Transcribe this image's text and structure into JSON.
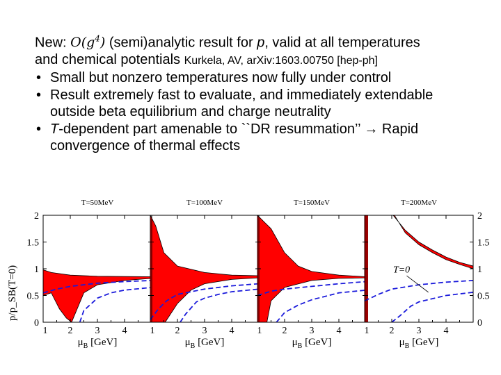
{
  "text": {
    "intro_prefix": "New: ",
    "intro_math": "O(g",
    "intro_math_sup": "4",
    "intro_math_close": ")",
    "intro_mid": " (semi)analytic result for ",
    "intro_p": "p",
    "intro_end": ", valid at all temperatures",
    "line2_main": "and chemical potentials ",
    "line2_ref": "Kurkela, AV, arXiv:1603.00750 [hep-ph]",
    "bullet1": "Small but nonzero temperatures now fully under control",
    "bullet2_l1": "Result extremely fast to evaluate, and immediately extendable",
    "bullet2_l2": "outside beta equilibrium and charge neutrality",
    "bullet3_T": "T",
    "bullet3_l1_rest": "-dependent part amenable to ``DR resummation’’ → Rapid",
    "bullet3_l2": "convergence of thermal effects"
  },
  "chart_data": {
    "type": "line",
    "ylabel": "p/p_SB(T=0)",
    "ylim": [
      0,
      2
    ],
    "xlim": [
      1,
      5
    ],
    "xticks": [
      1,
      2,
      3,
      4
    ],
    "yticks_left": [
      "0",
      "0.5",
      "1",
      "1.5",
      "2"
    ],
    "yticks_right": [
      "0",
      "0.5",
      "1",
      "1.5",
      "2"
    ],
    "xtick_labels": [
      "1",
      "2",
      "3",
      "4"
    ],
    "annotation": "T=0",
    "panels": [
      {
        "title": "T=50MeV",
        "xlabel": "μ_B [GeV]",
        "xlabel_main": "μ",
        "xlabel_sub": "B",
        "xlabel_unit": " [GeV]",
        "band_upper": [
          [
            1.0,
            0.98
          ],
          [
            1.3,
            0.93
          ],
          [
            2.0,
            0.88
          ],
          [
            3.0,
            0.86
          ],
          [
            5.0,
            0.85
          ]
        ],
        "band_lower": [
          [
            1.0,
            0.5
          ],
          [
            1.3,
            0.55
          ],
          [
            1.6,
            0.25
          ],
          [
            1.85,
            0.08
          ],
          [
            2.05,
            0.0
          ],
          [
            2.5,
            0.55
          ],
          [
            3.0,
            0.7
          ],
          [
            4.0,
            0.78
          ],
          [
            5.0,
            0.82
          ]
        ],
        "dashed_upper": [
          [
            1.0,
            0.55
          ],
          [
            1.5,
            0.62
          ],
          [
            2.0,
            0.67
          ],
          [
            3.0,
            0.73
          ],
          [
            4.0,
            0.76
          ],
          [
            5.0,
            0.78
          ]
        ],
        "dashed_lower": [
          [
            2.35,
            0.0
          ],
          [
            2.5,
            0.22
          ],
          [
            3.0,
            0.45
          ],
          [
            3.5,
            0.55
          ],
          [
            4.0,
            0.6
          ],
          [
            5.0,
            0.65
          ]
        ]
      },
      {
        "title": "T=100MeV",
        "xlabel": "μ_B [GeV]",
        "xlabel_main": "μ",
        "xlabel_sub": "B",
        "xlabel_unit": " [GeV]",
        "band_upper": [
          [
            1.0,
            2.0
          ],
          [
            1.2,
            1.8
          ],
          [
            1.5,
            1.3
          ],
          [
            2.0,
            1.05
          ],
          [
            3.0,
            0.93
          ],
          [
            4.0,
            0.88
          ],
          [
            5.0,
            0.87
          ]
        ],
        "band_lower": [
          [
            1.0,
            0.0
          ],
          [
            1.55,
            0.0
          ],
          [
            2.0,
            0.35
          ],
          [
            2.5,
            0.6
          ],
          [
            3.0,
            0.72
          ],
          [
            4.0,
            0.8
          ],
          [
            5.0,
            0.83
          ]
        ],
        "dashed_upper": [
          [
            1.0,
            0.05
          ],
          [
            1.3,
            0.25
          ],
          [
            1.6,
            0.4
          ],
          [
            2.0,
            0.52
          ],
          [
            3.0,
            0.62
          ],
          [
            4.0,
            0.68
          ],
          [
            5.0,
            0.72
          ]
        ],
        "dashed_lower": [
          [
            2.1,
            0.0
          ],
          [
            2.3,
            0.15
          ],
          [
            2.7,
            0.38
          ],
          [
            3.0,
            0.45
          ],
          [
            3.5,
            0.52
          ],
          [
            4.0,
            0.57
          ],
          [
            5.0,
            0.62
          ]
        ]
      },
      {
        "title": "T=150MeV",
        "xlabel": "μ_B [GeV]",
        "xlabel_main": "μ",
        "xlabel_sub": "B",
        "xlabel_unit": " [GeV]",
        "band_upper": [
          [
            1.0,
            2.0
          ],
          [
            1.5,
            1.75
          ],
          [
            2.0,
            1.3
          ],
          [
            2.5,
            1.05
          ],
          [
            3.0,
            0.95
          ],
          [
            4.0,
            0.88
          ],
          [
            5.0,
            0.85
          ]
        ],
        "band_lower": [
          [
            1.0,
            0.0
          ],
          [
            1.35,
            0.0
          ],
          [
            1.5,
            0.4
          ],
          [
            2.0,
            0.65
          ],
          [
            3.0,
            0.78
          ],
          [
            4.0,
            0.82
          ],
          [
            5.0,
            0.83
          ]
        ],
        "dashed_upper": [
          [
            1.0,
            0.5
          ],
          [
            1.5,
            0.58
          ],
          [
            2.0,
            0.62
          ],
          [
            3.0,
            0.67
          ],
          [
            4.0,
            0.72
          ],
          [
            5.0,
            0.76
          ]
        ],
        "dashed_lower": [
          [
            1.7,
            0.0
          ],
          [
            2.0,
            0.18
          ],
          [
            2.5,
            0.32
          ],
          [
            3.0,
            0.42
          ],
          [
            4.0,
            0.55
          ],
          [
            5.0,
            0.6
          ]
        ]
      },
      {
        "title": "T=200MeV",
        "xlabel": "μ_B [GeV]",
        "xlabel_main": "μ",
        "xlabel_sub": "B",
        "xlabel_unit": " [GeV]",
        "band_upper": [
          [
            2.05,
            2.0
          ],
          [
            2.5,
            1.72
          ],
          [
            3.0,
            1.5
          ],
          [
            3.5,
            1.35
          ],
          [
            4.0,
            1.22
          ],
          [
            4.5,
            1.12
          ],
          [
            5.0,
            1.05
          ]
        ],
        "band_lower": [
          [
            2.1,
            2.0
          ],
          [
            2.5,
            1.67
          ],
          [
            3.0,
            1.45
          ],
          [
            3.5,
            1.3
          ],
          [
            4.0,
            1.17
          ],
          [
            4.5,
            1.08
          ],
          [
            5.0,
            1.0
          ]
        ],
        "spike_x": [
          1.0,
          1.12
        ],
        "dashed_upper": [
          [
            1.0,
            0.4
          ],
          [
            1.5,
            0.52
          ],
          [
            2.0,
            0.62
          ],
          [
            3.0,
            0.7
          ],
          [
            4.0,
            0.75
          ],
          [
            5.0,
            0.78
          ]
        ],
        "dashed_lower": [
          [
            2.0,
            0.0
          ],
          [
            2.3,
            0.12
          ],
          [
            2.7,
            0.3
          ],
          [
            3.0,
            0.38
          ],
          [
            4.0,
            0.5
          ],
          [
            5.0,
            0.56
          ]
        ]
      }
    ]
  }
}
